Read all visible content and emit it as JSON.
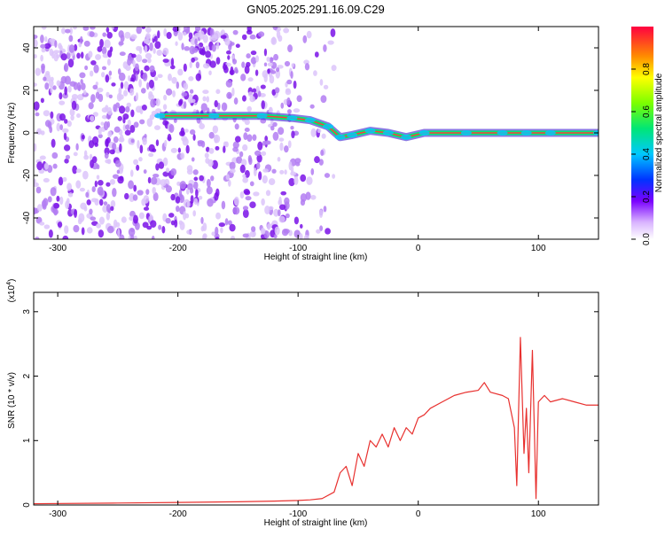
{
  "title": "GN05.2025.291.16.09.C29",
  "colors": {
    "plot_line": "#e8312f",
    "ridge": "#00e676",
    "speckle": "#6a1fe0",
    "axis": "#000000"
  },
  "chart_data": [
    {
      "type": "heatmap",
      "xlabel": "Height of straight line (km)",
      "ylabel": "Frequency (Hz)",
      "xlim": [
        -320,
        150
      ],
      "ylim": [
        -50,
        50
      ],
      "xticks": [
        -300,
        -200,
        -100,
        0,
        100
      ],
      "yticks": [
        -40,
        -20,
        0,
        20,
        40
      ],
      "colorbar": {
        "label": "Normalized spectral amplitude",
        "range": [
          0,
          1
        ],
        "ticks": [
          "0.0",
          "0.2",
          "0.4",
          "0.6",
          "0.8"
        ]
      },
      "ridge": [
        {
          "x": -215,
          "y": 8
        },
        {
          "x": -170,
          "y": 8
        },
        {
          "x": -130,
          "y": 8
        },
        {
          "x": -105,
          "y": 7
        },
        {
          "x": -90,
          "y": 6
        },
        {
          "x": -75,
          "y": 3
        },
        {
          "x": -65,
          "y": -2
        },
        {
          "x": -55,
          "y": -1
        },
        {
          "x": -40,
          "y": 1
        },
        {
          "x": -25,
          "y": 0
        },
        {
          "x": -10,
          "y": -2
        },
        {
          "x": 5,
          "y": 0
        },
        {
          "x": 40,
          "y": 0
        },
        {
          "x": 70,
          "y": 0
        },
        {
          "x": 90,
          "y": 0
        },
        {
          "x": 110,
          "y": 0
        },
        {
          "x": 150,
          "y": 0
        }
      ]
    },
    {
      "type": "line",
      "xlabel": "Height of straight line (km)",
      "ylabel": "SNR (10 * v/v)",
      "exponent_label": "(x10",
      "exponent_power": "4",
      "exponent_close": ")",
      "xlim": [
        -320,
        150
      ],
      "ylim": [
        0,
        3.3
      ],
      "xticks": [
        -300,
        -200,
        -100,
        0,
        100
      ],
      "yticks": [
        0,
        1,
        2,
        3
      ],
      "series": [
        {
          "x": [
            -320,
            -250,
            -200,
            -150,
            -120,
            -100,
            -90,
            -80,
            -70,
            -65,
            -60,
            -55,
            -50,
            -45,
            -40,
            -35,
            -30,
            -25,
            -20,
            -15,
            -10,
            -5,
            0,
            5,
            10,
            20,
            30,
            40,
            50,
            55,
            60,
            70,
            75,
            80,
            82,
            85,
            88,
            90,
            92,
            95,
            98,
            100,
            105,
            110,
            120,
            130,
            140,
            150
          ],
          "y": [
            0.02,
            0.03,
            0.04,
            0.05,
            0.06,
            0.07,
            0.08,
            0.1,
            0.2,
            0.5,
            0.6,
            0.3,
            0.8,
            0.6,
            1.0,
            0.9,
            1.1,
            0.9,
            1.2,
            1.0,
            1.2,
            1.1,
            1.35,
            1.4,
            1.5,
            1.6,
            1.7,
            1.75,
            1.78,
            1.9,
            1.75,
            1.7,
            1.65,
            1.2,
            0.3,
            2.6,
            0.8,
            1.5,
            0.5,
            2.4,
            0.1,
            1.6,
            1.7,
            1.6,
            1.65,
            1.6,
            1.55,
            1.55
          ]
        }
      ]
    }
  ]
}
